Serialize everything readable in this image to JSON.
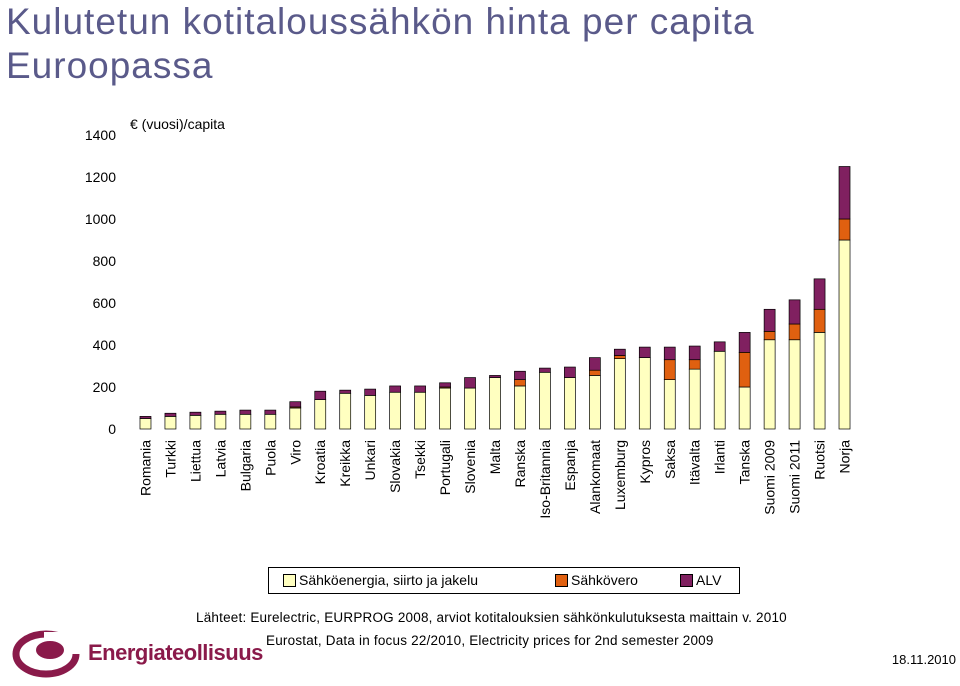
{
  "title": "Kulutetun kotitaloussähkön hinta per capita Euroopassa",
  "chart_data": {
    "type": "bar",
    "stacked": true,
    "unit_label": "€ (vuosi)/capita",
    "ylim": [
      0,
      1400
    ],
    "yticks": [
      0,
      200,
      400,
      600,
      800,
      1000,
      1200,
      1400
    ],
    "categories": [
      "Romania",
      "Turkki",
      "Liettua",
      "Latvia",
      "Bulgaria",
      "Puola",
      "Viro",
      "Kroatia",
      "Kreikka",
      "Unkari",
      "Slovakia",
      "Tsekki",
      "Portugali",
      "Slovenia",
      "Malta",
      "Ranska",
      "Iso-Britannia",
      "Espanja",
      "Alankomaat",
      "Luxemburg",
      "Kypros",
      "Saksa",
      "Itävalta",
      "Irlanti",
      "Tanska",
      "Suomi 2009",
      "Suomi 2011",
      "Ruotsi",
      "Norja"
    ],
    "series": [
      {
        "name": "Sähköenergia, siirto ja jakelu",
        "color": "#ffffc0",
        "values": [
          50,
          60,
          65,
          70,
          70,
          70,
          100,
          140,
          170,
          160,
          175,
          175,
          195,
          195,
          245,
          205,
          270,
          245,
          255,
          335,
          340,
          235,
          285,
          370,
          200,
          425,
          425,
          460,
          900
        ]
      },
      {
        "name": "Sähkövero",
        "color": "#e06010",
        "values": [
          0,
          0,
          0,
          0,
          0,
          0,
          5,
          0,
          0,
          0,
          0,
          0,
          5,
          0,
          0,
          30,
          0,
          0,
          25,
          15,
          0,
          95,
          45,
          0,
          165,
          40,
          75,
          110,
          100
        ]
      },
      {
        "name": "ALV",
        "color": "#802060",
        "values": [
          10,
          15,
          15,
          15,
          20,
          20,
          25,
          40,
          15,
          30,
          30,
          30,
          20,
          50,
          10,
          40,
          20,
          50,
          60,
          30,
          50,
          60,
          65,
          45,
          95,
          105,
          115,
          145,
          250
        ]
      }
    ]
  },
  "sources": "Lähteet: Eurelectric, EURPROG 2008, arviot kotitalouksien sähkönkulutuksesta maittain v. 2010",
  "sources2": "Eurostat, Data in focus 22/2010, Electricity prices for 2nd semester 2009",
  "date": "18.11.2010",
  "logo": "Energiateollisuus"
}
